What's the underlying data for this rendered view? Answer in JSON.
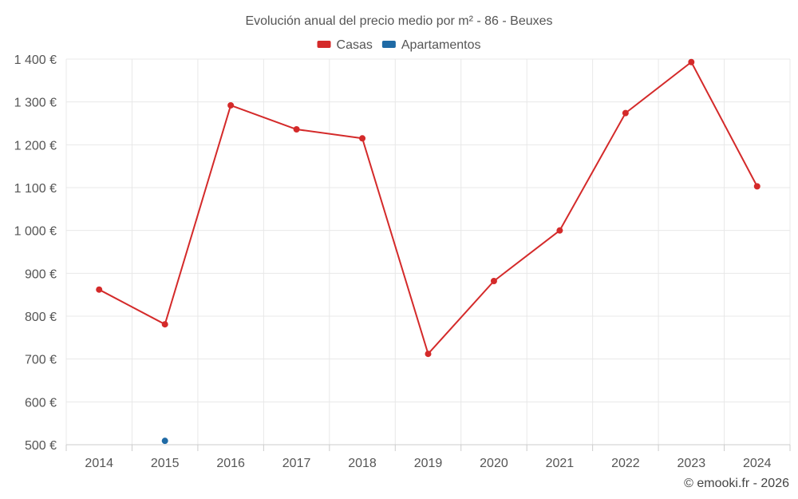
{
  "chart_data": {
    "type": "line",
    "title": "Evolución anual del precio medio por m² - 86 - Beuxes",
    "categories": [
      "2014",
      "2015",
      "2016",
      "2017",
      "2018",
      "2019",
      "2020",
      "2021",
      "2022",
      "2023",
      "2024"
    ],
    "series": [
      {
        "name": "Casas",
        "color": "#d42a2a",
        "values": [
          862,
          781,
          1292,
          1236,
          1215,
          712,
          882,
          1000,
          1274,
          1393,
          1103
        ]
      },
      {
        "name": "Apartamentos",
        "color": "#1f6aa5",
        "values": [
          null,
          509,
          null,
          null,
          null,
          null,
          null,
          null,
          null,
          null,
          null
        ]
      }
    ],
    "y_ticks": [
      "500 €",
      "600 €",
      "700 €",
      "800 €",
      "900 €",
      "1 000 €",
      "1 100 €",
      "1 200 €",
      "1 300 €",
      "1 400 €"
    ],
    "ylim": [
      500,
      1400
    ],
    "xlabel": "",
    "ylabel": "",
    "grid": true,
    "legend_position": "top-center"
  },
  "credit": "© emooki.fr - 2026"
}
